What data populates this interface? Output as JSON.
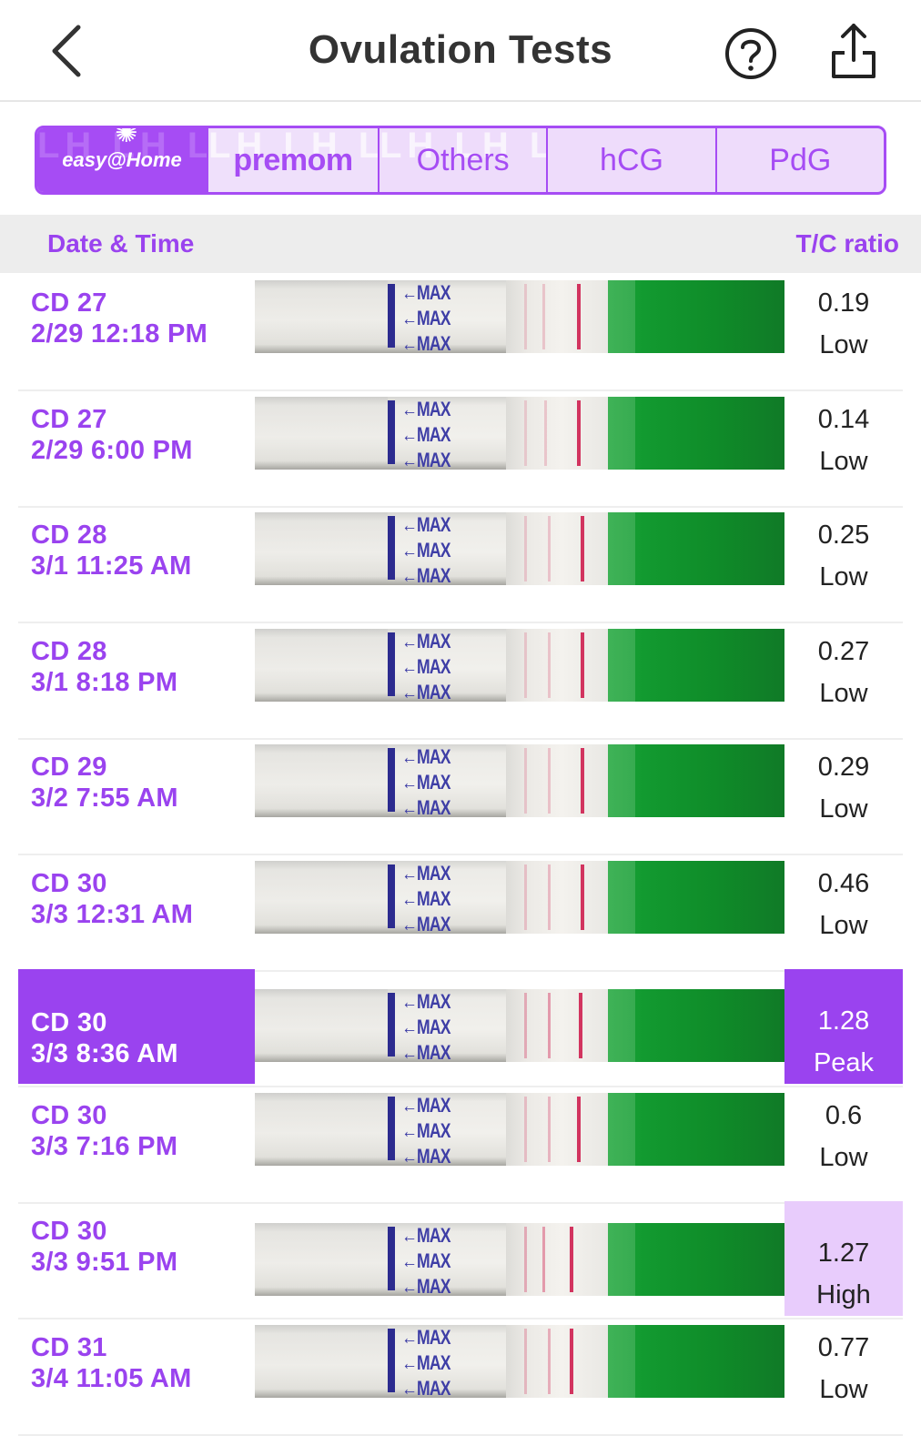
{
  "header": {
    "title": "Ovulation Tests",
    "back_icon": "chevron-left-icon",
    "help_icon": "question-circle-icon",
    "share_icon": "share-icon"
  },
  "tabs": {
    "easy_home": "easy@Home",
    "premom": "premom",
    "others": "Others",
    "hcg": "hCG",
    "pdg": "PdG",
    "watermark": "LH LH LH"
  },
  "columns": {
    "date_time": "Date & Time",
    "ratio": "T/C ratio"
  },
  "strip_label": "MAX",
  "colors": {
    "accent": "#9a43ef",
    "high_bg": "#e8ccfc",
    "test_line": "#d2345f",
    "wick_green": "#129a30"
  },
  "tests": [
    {
      "cd": "CD 27",
      "datetime": "2/29 12:18 PM",
      "ratio": "0.19",
      "level": "Low"
    },
    {
      "cd": "CD 27",
      "datetime": "2/29 6:00 PM",
      "ratio": "0.14",
      "level": "Low"
    },
    {
      "cd": "CD 28",
      "datetime": "3/1 11:25 AM",
      "ratio": "0.25",
      "level": "Low"
    },
    {
      "cd": "CD 28",
      "datetime": "3/1 8:18 PM",
      "ratio": "0.27",
      "level": "Low"
    },
    {
      "cd": "CD 29",
      "datetime": "3/2 7:55 AM",
      "ratio": "0.29",
      "level": "Low"
    },
    {
      "cd": "CD 30",
      "datetime": "3/3 12:31 AM",
      "ratio": "0.46",
      "level": "Low"
    },
    {
      "cd": "CD 30",
      "datetime": "3/3 8:36 AM",
      "ratio": "1.28",
      "level": "Peak"
    },
    {
      "cd": "CD 30",
      "datetime": "3/3 7:16 PM",
      "ratio": "0.6",
      "level": "Low"
    },
    {
      "cd": "CD 30",
      "datetime": "3/3 9:51 PM",
      "ratio": "1.27",
      "level": "High"
    },
    {
      "cd": "CD 31",
      "datetime": "3/4 11:05 AM",
      "ratio": "0.77",
      "level": "Low"
    }
  ]
}
